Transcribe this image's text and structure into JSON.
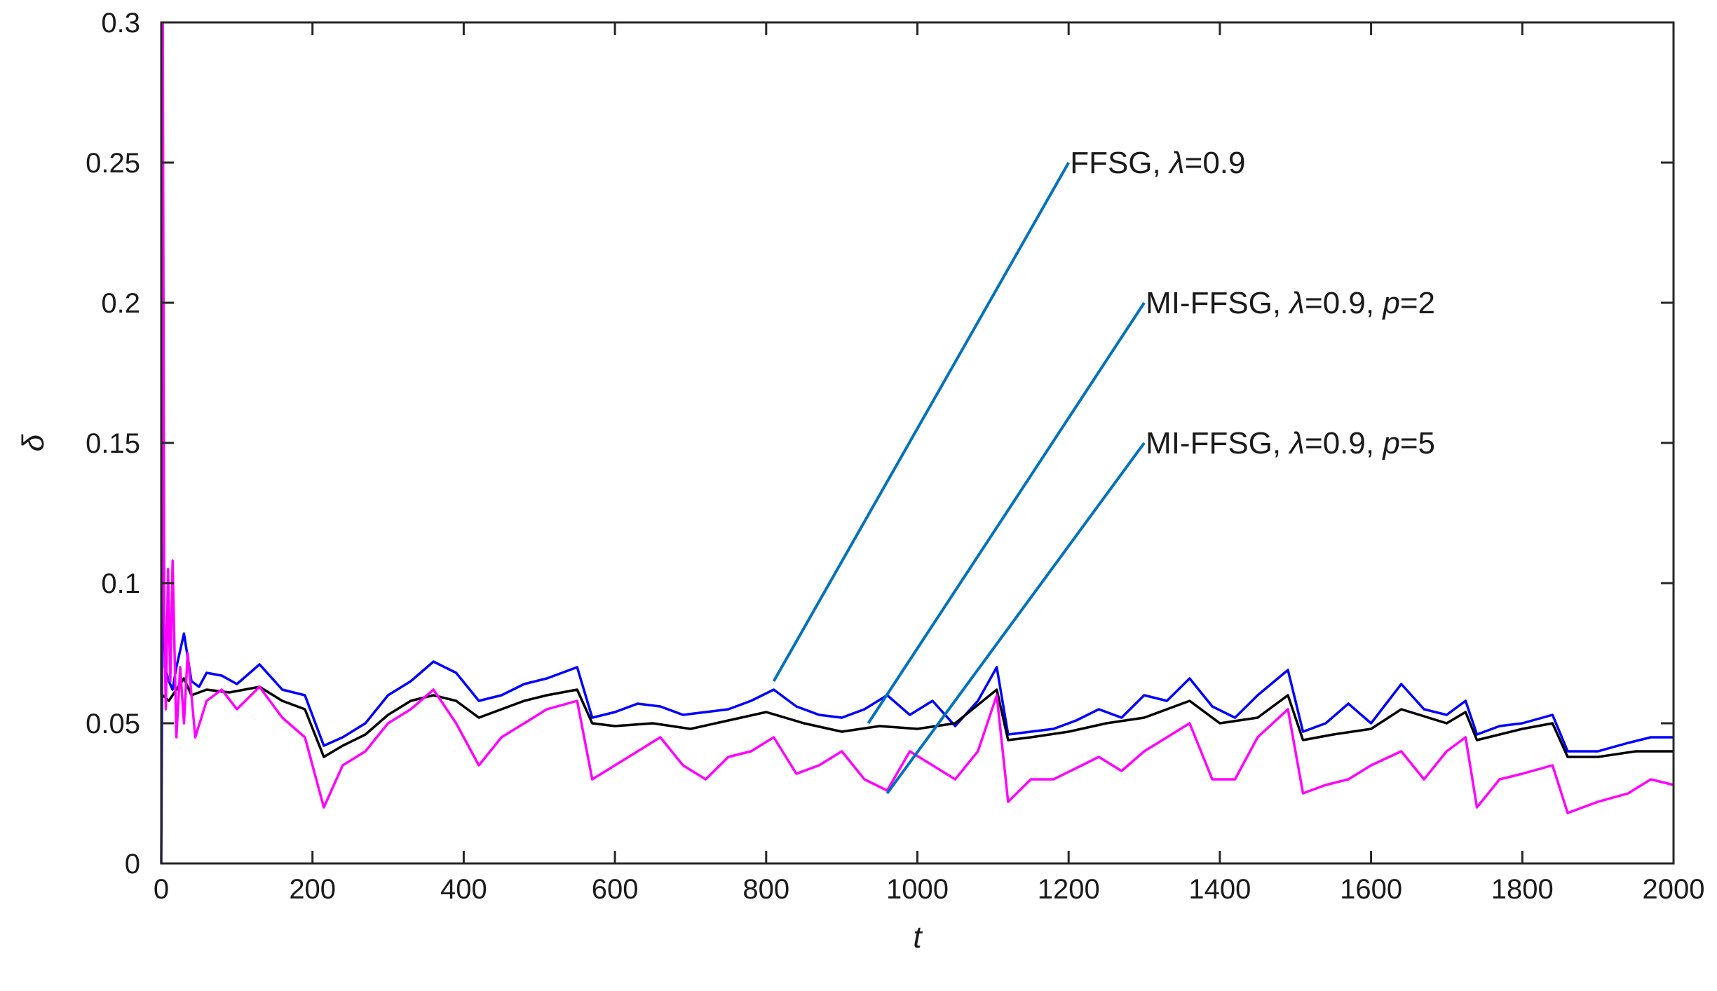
{
  "chart_data": {
    "type": "line",
    "title": "",
    "xlabel": "t",
    "ylabel": "δ",
    "xlim": [
      0,
      2000
    ],
    "ylim": [
      0,
      0.3
    ],
    "x_ticks": [
      0,
      200,
      400,
      600,
      800,
      1000,
      1200,
      1400,
      1600,
      1800,
      2000
    ],
    "y_ticks": [
      0,
      0.05,
      0.1,
      0.15,
      0.2,
      0.25,
      0.3
    ],
    "x_tick_labels": [
      "0",
      "200",
      "400",
      "600",
      "800",
      "1000",
      "1200",
      "1400",
      "1600",
      "1800",
      "2000"
    ],
    "y_tick_labels": [
      "0",
      "0.05",
      "0.1",
      "0.15",
      "0.2",
      "0.25",
      "0.3"
    ],
    "grid": false,
    "series": [
      {
        "name": "FFSG, λ=0.9",
        "color": "#0000ff",
        "x": [
          0,
          2,
          5,
          10,
          15,
          20,
          30,
          40,
          50,
          60,
          80,
          100,
          130,
          160,
          190,
          215,
          240,
          270,
          300,
          330,
          360,
          390,
          420,
          450,
          480,
          510,
          550,
          570,
          600,
          630,
          660,
          690,
          720,
          750,
          780,
          810,
          840,
          870,
          900,
          930,
          960,
          990,
          1020,
          1050,
          1080,
          1105,
          1120,
          1150,
          1180,
          1210,
          1240,
          1270,
          1300,
          1330,
          1360,
          1390,
          1420,
          1450,
          1490,
          1510,
          1540,
          1570,
          1600,
          1640,
          1670,
          1700,
          1725,
          1740,
          1770,
          1800,
          1840,
          1860,
          1900,
          1940,
          1970,
          2000
        ],
        "y": [
          0,
          0.12,
          0.07,
          0.065,
          0.062,
          0.07,
          0.082,
          0.065,
          0.063,
          0.068,
          0.067,
          0.064,
          0.071,
          0.062,
          0.06,
          0.042,
          0.045,
          0.05,
          0.06,
          0.065,
          0.072,
          0.068,
          0.058,
          0.06,
          0.064,
          0.066,
          0.07,
          0.052,
          0.054,
          0.057,
          0.056,
          0.053,
          0.054,
          0.055,
          0.058,
          0.062,
          0.056,
          0.053,
          0.052,
          0.055,
          0.06,
          0.053,
          0.058,
          0.049,
          0.058,
          0.07,
          0.046,
          0.047,
          0.048,
          0.051,
          0.055,
          0.052,
          0.06,
          0.058,
          0.066,
          0.056,
          0.052,
          0.06,
          0.069,
          0.047,
          0.05,
          0.057,
          0.05,
          0.064,
          0.055,
          0.053,
          0.058,
          0.046,
          0.049,
          0.05,
          0.053,
          0.04,
          0.04,
          0.043,
          0.045,
          0.045
        ]
      },
      {
        "name": "MI-FFSG, λ=0.9, p=2",
        "color": "#000000",
        "x": [
          2,
          10,
          20,
          30,
          40,
          60,
          90,
          130,
          160,
          190,
          215,
          240,
          270,
          300,
          330,
          360,
          390,
          420,
          450,
          480,
          510,
          550,
          570,
          600,
          650,
          700,
          750,
          800,
          850,
          900,
          950,
          1000,
          1050,
          1105,
          1120,
          1150,
          1200,
          1250,
          1300,
          1360,
          1400,
          1450,
          1490,
          1510,
          1550,
          1600,
          1640,
          1700,
          1725,
          1740,
          1800,
          1840,
          1860,
          1900,
          1950,
          2000
        ],
        "y": [
          0.06,
          0.058,
          0.062,
          0.066,
          0.06,
          0.062,
          0.061,
          0.063,
          0.058,
          0.055,
          0.038,
          0.042,
          0.046,
          0.053,
          0.058,
          0.06,
          0.058,
          0.052,
          0.055,
          0.058,
          0.06,
          0.062,
          0.05,
          0.049,
          0.05,
          0.048,
          0.051,
          0.054,
          0.05,
          0.047,
          0.049,
          0.048,
          0.05,
          0.062,
          0.044,
          0.045,
          0.047,
          0.05,
          0.052,
          0.058,
          0.05,
          0.052,
          0.06,
          0.044,
          0.046,
          0.048,
          0.055,
          0.05,
          0.054,
          0.044,
          0.048,
          0.05,
          0.038,
          0.038,
          0.04,
          0.04
        ]
      },
      {
        "name": "MI-FFSG, λ=0.9, p=5",
        "color": "#ff00ff",
        "x": [
          0,
          2,
          4,
          6,
          9,
          12,
          15,
          20,
          25,
          30,
          35,
          45,
          60,
          80,
          100,
          130,
          160,
          190,
          215,
          240,
          270,
          300,
          330,
          360,
          390,
          420,
          450,
          480,
          510,
          550,
          570,
          600,
          630,
          660,
          690,
          720,
          750,
          780,
          810,
          840,
          870,
          900,
          930,
          960,
          990,
          1020,
          1050,
          1080,
          1105,
          1120,
          1150,
          1180,
          1210,
          1240,
          1270,
          1300,
          1330,
          1360,
          1390,
          1420,
          1450,
          1490,
          1510,
          1540,
          1570,
          1600,
          1640,
          1670,
          1700,
          1725,
          1740,
          1770,
          1800,
          1840,
          1860,
          1900,
          1940,
          1970,
          2000
        ],
        "y": [
          0.06,
          0.3,
          0.09,
          0.055,
          0.105,
          0.065,
          0.108,
          0.045,
          0.07,
          0.05,
          0.075,
          0.045,
          0.058,
          0.062,
          0.055,
          0.063,
          0.052,
          0.045,
          0.02,
          0.035,
          0.04,
          0.05,
          0.055,
          0.062,
          0.05,
          0.035,
          0.045,
          0.05,
          0.055,
          0.058,
          0.03,
          0.035,
          0.04,
          0.045,
          0.035,
          0.03,
          0.038,
          0.04,
          0.045,
          0.032,
          0.035,
          0.04,
          0.03,
          0.026,
          0.04,
          0.035,
          0.03,
          0.04,
          0.06,
          0.022,
          0.03,
          0.03,
          0.034,
          0.038,
          0.033,
          0.04,
          0.045,
          0.05,
          0.03,
          0.03,
          0.045,
          0.055,
          0.025,
          0.028,
          0.03,
          0.035,
          0.04,
          0.03,
          0.04,
          0.045,
          0.02,
          0.03,
          0.032,
          0.035,
          0.018,
          0.022,
          0.025,
          0.03,
          0.028
        ]
      }
    ],
    "annotations": [
      {
        "parts": [
          {
            "text": "FFSG,  ",
            "italic": false
          },
          {
            "text": "λ",
            "italic": true
          },
          {
            "text": "=0.9",
            "italic": false
          }
        ],
        "text_at": [
          1200,
          0.25
        ],
        "arrow_to": [
          810,
          0.065
        ]
      },
      {
        "parts": [
          {
            "text": "MI-FFSG,  ",
            "italic": false
          },
          {
            "text": "λ",
            "italic": true
          },
          {
            "text": "=0.9,  ",
            "italic": false
          },
          {
            "text": "p",
            "italic": true
          },
          {
            "text": "=2",
            "italic": false
          }
        ],
        "text_at": [
          1300,
          0.2
        ],
        "arrow_to": [
          935,
          0.05
        ]
      },
      {
        "parts": [
          {
            "text": "MI-FFSG,  ",
            "italic": false
          },
          {
            "text": "λ",
            "italic": true
          },
          {
            "text": "=0.9,  ",
            "italic": false
          },
          {
            "text": "p",
            "italic": true
          },
          {
            "text": "=5",
            "italic": false
          }
        ],
        "text_at": [
          1300,
          0.15
        ],
        "arrow_to": [
          960,
          0.025
        ]
      }
    ],
    "annotation_line_color": "#0072bd"
  }
}
